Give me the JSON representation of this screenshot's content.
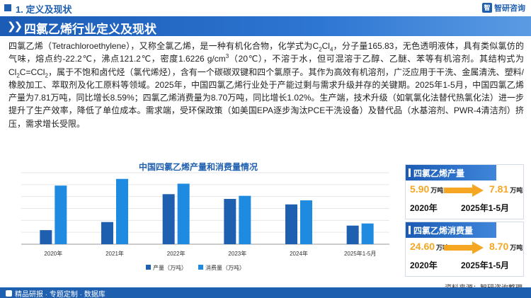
{
  "header": {
    "section": "1. 定义及现状",
    "logo_text": "智研咨询"
  },
  "title": "四氯乙烯行业定义及现状",
  "paragraph": {
    "p1": "四氯乙烯（Tetrachloroethylene），又称全氯乙烯，是一种有机化合物，化学式为C",
    "p1_sub1": "2",
    "p1_mid": "Cl",
    "p1_sub2": "4",
    "p2": "，分子量165.83，无色透明液体，具有类似氯仿的气味，熔点约-22.2℃，沸点121.2℃，密度1.6226 g/cm",
    "p2_sup": "3",
    "p3": "（20℃），不溶于水，但可混溶于乙醇、乙醚、苯等有机溶剂。其结构式为Cl",
    "p3_sub1": "2",
    "p3_mid": "C=CCl",
    "p3_sub2": "2",
    "p4": "，属于不饱和卤代烃（氯代烯烃），含有一个碳碳双键和四个氯原子。其作为高效有机溶剂，广泛应用于干洗、金属清洗、塑料/橡胶加工、萃取剂及化工原料等领域。2025年，中国四氯乙烯行业处于产能过剩与需求升级并存的关键期。2025年1-5月，中国四氯乙烯产量为7.81万吨，同比增长8.59%；四氯乙烯消费量为8.70万吨，同比增长1.02%。生产端，技术升级（如氧氯化法替代热氯化法）进一步提升了生产效率，降低了单位成本。需求端，受环保政策（如美国EPA逐步淘汰PCE干洗设备）及替代品（水基溶剂、PWR-4清洁剂）挤压，需求增长受限。"
  },
  "chart_data": {
    "type": "bar",
    "title": "中国四氯乙烯产量和消费量情况",
    "categories": [
      "2020年",
      "2021年",
      "2022年",
      "2023年",
      "2024年",
      "2025年1-5月"
    ],
    "series": [
      {
        "name": "产量（万吨）",
        "values": [
          5.9,
          9.3,
          21.0,
          19.0,
          16.7,
          7.81
        ],
        "color": "#1f5fb0"
      },
      {
        "name": "消费量（万吨）",
        "values": [
          24.6,
          27.4,
          25.4,
          20.3,
          18.4,
          8.7
        ],
        "color": "#1f8be0"
      }
    ],
    "ylim": [
      0,
      30
    ],
    "grid": true,
    "legend": "bottom"
  },
  "cards": [
    {
      "label": "四氯乙烯产量",
      "from_value": "5.90",
      "from_unit": "万吨",
      "from_year": "2020年",
      "to_value": "7.81",
      "to_unit": "万吨",
      "to_year": "2025年1-5月"
    },
    {
      "label": "四氯乙烯消费量",
      "from_value": "24.60",
      "from_unit": "万吨",
      "from_year": "2020年",
      "to_value": "8.70",
      "to_unit": "万吨",
      "to_year": "2025年1-5月"
    }
  ],
  "source": "资料来源：智研咨询整理",
  "footer": "精品研报 · 专题定制 · 数据库",
  "colors": {
    "brand": "#1f5fb0",
    "accent": "#f5a623"
  }
}
